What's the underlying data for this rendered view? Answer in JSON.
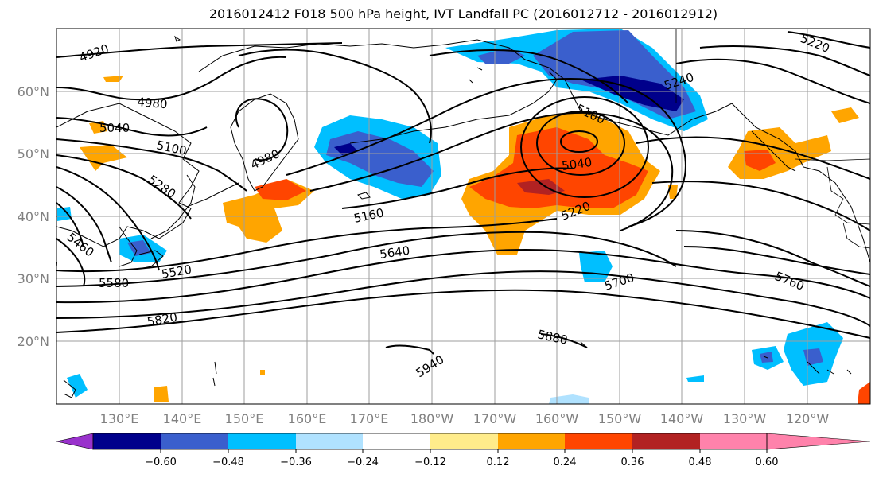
{
  "title": "2016012412 F018 500 hPa height, IVT Landfall PC (2016012712 - 2016012912)",
  "lat_labels": [
    "60°N",
    "50°N",
    "40°N",
    "30°N",
    "20°N"
  ],
  "lon_labels": [
    "130°E",
    "140°E",
    "150°E",
    "160°E",
    "170°E",
    "180°W",
    "170°W",
    "160°W",
    "150°W",
    "140°W",
    "130°W",
    "120°W"
  ],
  "contour_labels": [
    "4920",
    "4980",
    "5040",
    "5100",
    "5280",
    "4980",
    "5460",
    "5520",
    "5580",
    "5820",
    "5160",
    "5640",
    "5100",
    "5040",
    "5220",
    "5240",
    "5220",
    "5700",
    "5760",
    "5880",
    "5940"
  ],
  "colorbar": {
    "ticks": [
      "−0.60",
      "−0.48",
      "−0.36",
      "−0.24",
      "−0.12",
      "0.12",
      "0.24",
      "0.36",
      "0.48",
      "0.60"
    ],
    "colors": [
      "#9932cc",
      "#00008b",
      "#3a5fcd",
      "#00bfff",
      "#b0e2ff",
      "#ffffff",
      "#ffec8b",
      "#ffa500",
      "#ff4500",
      "#b22222",
      "#ff82ab"
    ]
  }
}
